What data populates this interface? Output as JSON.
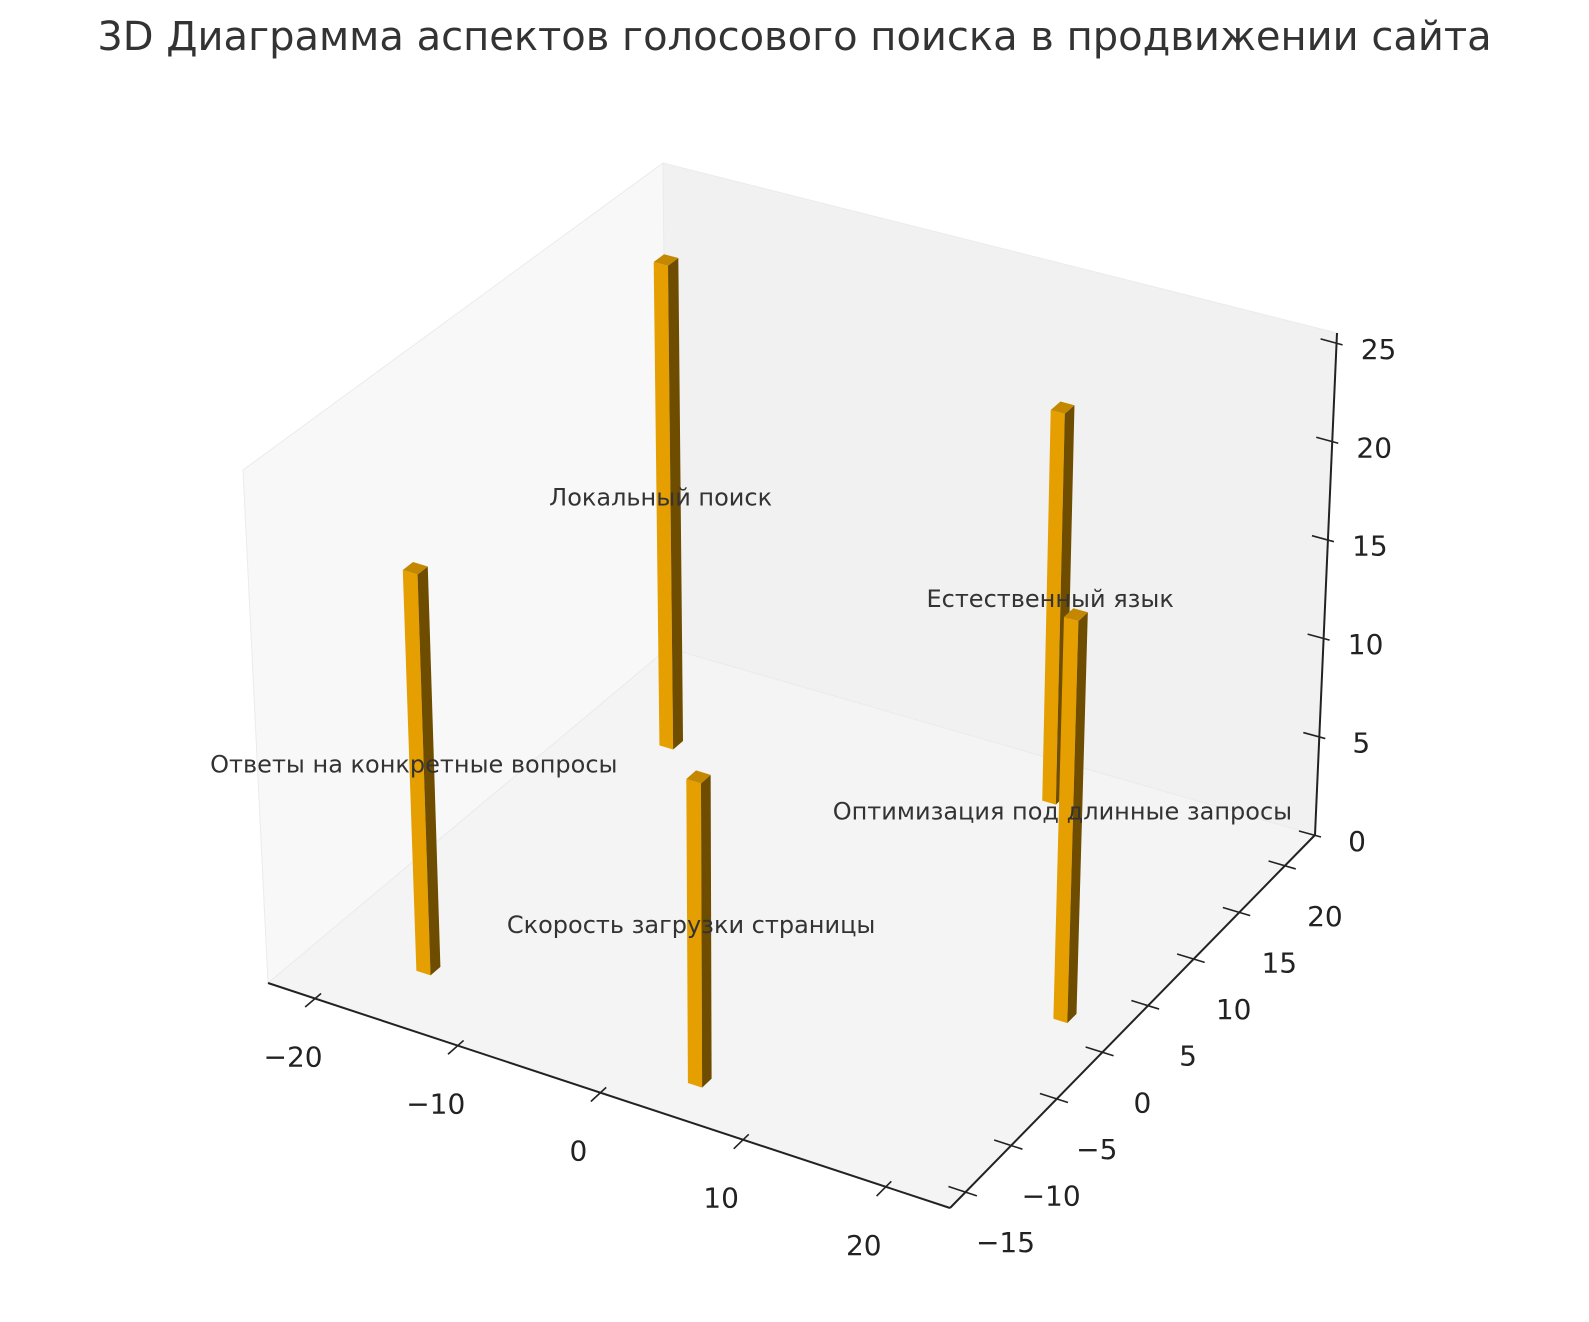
{
  "chart_data": {
    "type": "bar3d",
    "title": "3D Диаграмма аспектов голосового поиска в продвижении сайта",
    "xlabel": "",
    "ylabel": "",
    "zlabel": "",
    "xlim": [
      -23.3,
      24.5
    ],
    "ylim": [
      -16.7,
      23.3
    ],
    "zlim": [
      0,
      25.5
    ],
    "xticks": [
      -20,
      -10,
      0,
      10,
      20
    ],
    "yticks": [
      -15,
      -10,
      -5,
      0,
      5,
      10,
      15,
      20
    ],
    "zticks": [
      0,
      5,
      10,
      15,
      20,
      25
    ],
    "grid": false,
    "bar_color": "#E69F00",
    "bars": [
      {
        "label": "Ответы на конкретные вопросы",
        "x": -16,
        "y": -11,
        "z": 20
      },
      {
        "label": "Локальный поиск",
        "x": -17,
        "y": 15,
        "z": 25
      },
      {
        "label": "Скорость загрузки страницы",
        "x": 4.5,
        "y": -13,
        "z": 15
      },
      {
        "label": "Естественный язык",
        "x": 7.5,
        "y": 20,
        "z": 20
      },
      {
        "label": "Оптимизация под длинные запросы",
        "x": 20.5,
        "y": 2,
        "z": 20
      }
    ]
  }
}
